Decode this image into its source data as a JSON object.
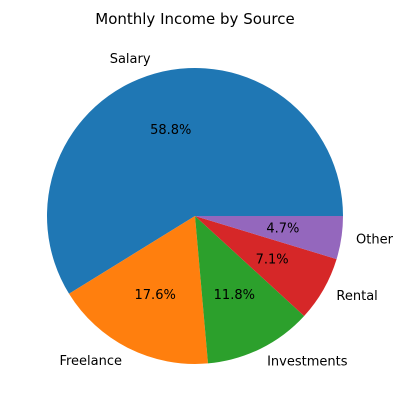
{
  "chart_data": {
    "type": "pie",
    "title": "Monthly Income by Source",
    "categories": [
      "Salary",
      "Freelance",
      "Investments",
      "Rental",
      "Other"
    ],
    "values": [
      58.8,
      17.6,
      11.8,
      7.1,
      4.7
    ],
    "value_labels": [
      "58.8%",
      "17.6%",
      "11.8%",
      "7.1%",
      "4.7%"
    ],
    "colors": [
      "#1f77b4",
      "#ff7f0e",
      "#2ca02c",
      "#d62728",
      "#9467bd"
    ],
    "start_angle_deg": 0,
    "direction": "counterclockwise",
    "legend": "none"
  }
}
